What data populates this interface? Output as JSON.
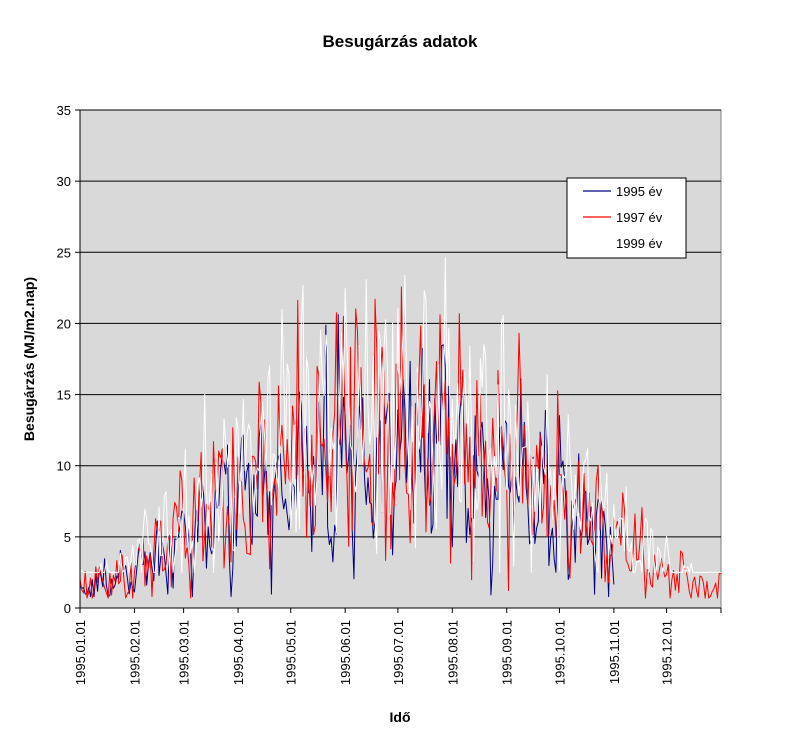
{
  "chart_data": {
    "type": "line",
    "title": "Besugárzás adatok",
    "xlabel": "Idő",
    "ylabel": "Besugárzás (MJ/m2.nap)",
    "ylim": [
      0,
      35
    ],
    "yticks": [
      "0",
      "5",
      "10",
      "15",
      "20",
      "25",
      "30",
      "35"
    ],
    "x_tick_labels": [
      "1995.01.01",
      "1995.02.01",
      "1995.03.01",
      "1995.04.01",
      "1995.05.01",
      "1995.06.01",
      "1995.07.01",
      "1995.08.01",
      "1995.09.01",
      "1995.10.01",
      "1995.11.01",
      "1995.12.01"
    ],
    "x_tick_days": [
      0,
      31,
      59,
      90,
      120,
      151,
      181,
      212,
      243,
      273,
      304,
      334
    ],
    "x_range_days": [
      0,
      365
    ],
    "grid": "horizontal",
    "legend_position": "right",
    "plot_background": "#d9d9d9",
    "series": [
      {
        "name": "1995 év",
        "color": "#000080",
        "amplitude": 12,
        "noise": 7,
        "floor": 0.8,
        "phase": 1.3,
        "day_start": 0,
        "day_end": 304
      },
      {
        "name": "1997 év",
        "color": "#ff0000",
        "amplitude": 13.5,
        "noise": 8,
        "floor": 0.7,
        "phase": 2.1,
        "day_start": 0,
        "day_end": 365
      },
      {
        "name": "1999 év",
        "color": "#ffffff",
        "amplitude": 16,
        "noise": 8,
        "floor": 2.5,
        "phase": 0.4,
        "day_start": 0,
        "day_end": 365
      }
    ]
  }
}
